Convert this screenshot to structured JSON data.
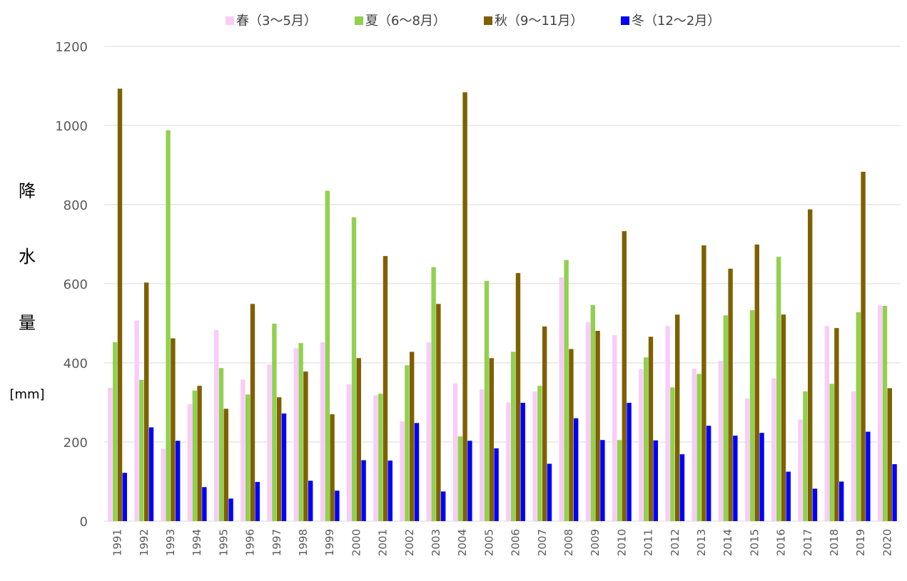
{
  "chart_data": {
    "type": "bar",
    "categories": [
      "1991",
      "1992",
      "1993",
      "1994",
      "1995",
      "1996",
      "1997",
      "1998",
      "1999",
      "2000",
      "2001",
      "2002",
      "2003",
      "2004",
      "2005",
      "2006",
      "2007",
      "2008",
      "2009",
      "2010",
      "2011",
      "2012",
      "2013",
      "2014",
      "2015",
      "2016",
      "2017",
      "2018",
      "2019",
      "2020"
    ],
    "series": [
      {
        "name": "春（3～5月）",
        "color": "#f9ccf9",
        "values": [
          337,
          507,
          183,
          296,
          483,
          358,
          396,
          437,
          452,
          346,
          318,
          252,
          452,
          348,
          333,
          300,
          328,
          616,
          503,
          470,
          384,
          493,
          385,
          405,
          310,
          361,
          257,
          493,
          328,
          545
        ]
      },
      {
        "name": "夏（6～8月）",
        "color": "#92d050",
        "values": [
          452,
          357,
          988,
          330,
          387,
          320,
          499,
          450,
          835,
          768,
          322,
          394,
          642,
          214,
          607,
          428,
          342,
          660,
          546,
          205,
          414,
          338,
          372,
          520,
          533,
          668,
          328,
          347,
          528,
          544
        ]
      },
      {
        "name": "秋（9～11月）",
        "color": "#7f6000",
        "values": [
          1093,
          603,
          462,
          342,
          284,
          549,
          313,
          378,
          270,
          412,
          670,
          428,
          549,
          1084,
          412,
          627,
          492,
          435,
          481,
          733,
          466,
          522,
          697,
          638,
          699,
          522,
          788,
          488,
          883,
          336
        ]
      },
      {
        "name": "冬（12～2月）",
        "color": "#0000ff",
        "values": [
          122,
          237,
          203,
          86,
          57,
          99,
          272,
          102,
          77,
          154,
          153,
          248,
          75,
          203,
          184,
          299,
          145,
          260,
          205,
          299,
          204,
          169,
          241,
          216,
          223,
          125,
          82,
          100,
          226,
          144
        ]
      }
    ],
    "ylabel": "降水量",
    "yunit": "[mm]",
    "ylim": [
      0,
      1200
    ],
    "yticks": [
      "0",
      "200",
      "400",
      "600",
      "800",
      "1000",
      "1200"
    ],
    "grid": true,
    "legend_position": "top"
  }
}
